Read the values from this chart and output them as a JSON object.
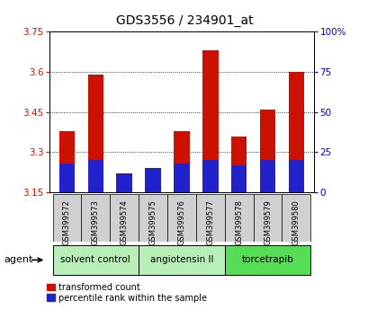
{
  "title": "GDS3556 / 234901_at",
  "samples": [
    "GSM399572",
    "GSM399573",
    "GSM399574",
    "GSM399575",
    "GSM399576",
    "GSM399577",
    "GSM399578",
    "GSM399579",
    "GSM399580"
  ],
  "transformed_counts": [
    3.38,
    3.59,
    3.17,
    3.23,
    3.38,
    3.68,
    3.36,
    3.46,
    3.6
  ],
  "percentile_ranks": [
    18,
    20,
    12,
    15,
    18,
    20,
    17,
    20,
    20
  ],
  "baseline": 3.15,
  "ylim_left": [
    3.15,
    3.75
  ],
  "ylim_right": [
    0,
    100
  ],
  "yticks_left": [
    3.15,
    3.3,
    3.45,
    3.6,
    3.75
  ],
  "yticks_right": [
    0,
    25,
    50,
    75,
    100
  ],
  "agent_groups": [
    {
      "label": "solvent control",
      "start": 0,
      "end": 3,
      "color": "#b8efb8"
    },
    {
      "label": "angiotensin II",
      "start": 3,
      "end": 6,
      "color": "#b8efb8"
    },
    {
      "label": "torcetrapib",
      "start": 6,
      "end": 9,
      "color": "#55dd55"
    }
  ],
  "bar_color_red": "#cc1100",
  "bar_color_blue": "#2222cc",
  "bar_width": 0.55,
  "grid_color": "black",
  "background_color": "white",
  "left_label_color": "#cc1100",
  "right_label_color": "#0000bb",
  "legend_red_label": "transformed count",
  "legend_blue_label": "percentile rank within the sample",
  "agent_text": "agent",
  "title_fontsize": 10,
  "tick_fontsize": 7.5,
  "sample_fontsize": 6,
  "agent_fontsize": 7.5,
  "legend_fontsize": 7
}
